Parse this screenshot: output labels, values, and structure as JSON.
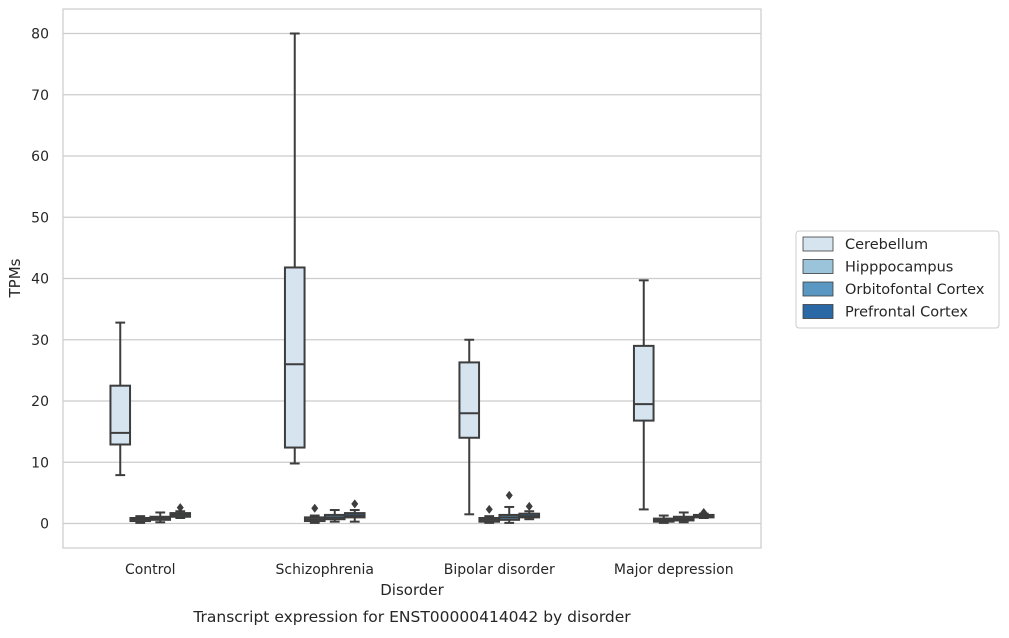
{
  "caption": "Transcript expression for ENST00000414042 by disorder",
  "chart_data": {
    "type": "box",
    "title": "",
    "xlabel": "Disorder",
    "ylabel": "TPMs",
    "ylim": [
      -4,
      84
    ],
    "yticks": [
      0,
      10,
      20,
      30,
      40,
      50,
      60,
      70,
      80
    ],
    "grid": "horizontal",
    "legend_position": "right",
    "categories": [
      "Control",
      "Schizophrenia",
      "Bipolar disorder",
      "Major depression"
    ],
    "series": [
      {
        "name": "Cerebellum",
        "color": "#d6e4f0",
        "boxes": [
          {
            "whisker_low": 7.9,
            "q1": 12.9,
            "median": 14.8,
            "q3": 22.5,
            "whisker_high": 32.8,
            "outliers": []
          },
          {
            "whisker_low": 9.8,
            "q1": 12.4,
            "median": 26.0,
            "q3": 41.8,
            "whisker_high": 80.0,
            "outliers": []
          },
          {
            "whisker_low": 1.5,
            "q1": 14.0,
            "median": 18.0,
            "q3": 26.3,
            "whisker_high": 30.0,
            "outliers": []
          },
          {
            "whisker_low": 2.3,
            "q1": 16.8,
            "median": 19.5,
            "q3": 29.0,
            "whisker_high": 39.7,
            "outliers": []
          }
        ]
      },
      {
        "name": "Hipppocampus",
        "color": "#9bc4db",
        "boxes": [
          {
            "whisker_low": 0.1,
            "q1": 0.4,
            "median": 0.7,
            "q3": 0.9,
            "whisker_high": 1.2,
            "outliers": []
          },
          {
            "whisker_low": 0.1,
            "q1": 0.4,
            "median": 0.7,
            "q3": 1.0,
            "whisker_high": 1.3,
            "outliers": [
              2.5
            ]
          },
          {
            "whisker_low": 0.1,
            "q1": 0.3,
            "median": 0.6,
            "q3": 0.9,
            "whisker_high": 1.2,
            "outliers": [
              2.3
            ]
          },
          {
            "whisker_low": 0.1,
            "q1": 0.3,
            "median": 0.5,
            "q3": 0.8,
            "whisker_high": 1.3,
            "outliers": []
          }
        ]
      },
      {
        "name": "Orbitofontal Cortex",
        "color": "#5a98c3",
        "boxes": [
          {
            "whisker_low": 0.2,
            "q1": 0.6,
            "median": 0.9,
            "q3": 1.1,
            "whisker_high": 1.8,
            "outliers": []
          },
          {
            "whisker_low": 0.3,
            "q1": 0.7,
            "median": 1.0,
            "q3": 1.4,
            "whisker_high": 2.2,
            "outliers": []
          },
          {
            "whisker_low": 0.1,
            "q1": 0.6,
            "median": 1.0,
            "q3": 1.4,
            "whisker_high": 2.7,
            "outliers": [
              4.6
            ]
          },
          {
            "whisker_low": 0.2,
            "q1": 0.5,
            "median": 0.8,
            "q3": 1.1,
            "whisker_high": 1.8,
            "outliers": []
          }
        ]
      },
      {
        "name": "Prefrontal Cortex",
        "color": "#2a69a6",
        "boxes": [
          {
            "whisker_low": 0.9,
            "q1": 1.1,
            "median": 1.4,
            "q3": 1.7,
            "whisker_high": 2.0,
            "outliers": [
              2.6
            ]
          },
          {
            "whisker_low": 0.3,
            "q1": 1.0,
            "median": 1.3,
            "q3": 1.7,
            "whisker_high": 2.2,
            "outliers": [
              3.2
            ]
          },
          {
            "whisker_low": 0.7,
            "q1": 1.0,
            "median": 1.2,
            "q3": 1.6,
            "whisker_high": 2.0,
            "outliers": [
              2.8
            ]
          },
          {
            "whisker_low": 0.9,
            "q1": 1.0,
            "median": 1.2,
            "q3": 1.4,
            "whisker_high": 1.6,
            "outliers": [
              1.8
            ]
          }
        ]
      }
    ]
  }
}
